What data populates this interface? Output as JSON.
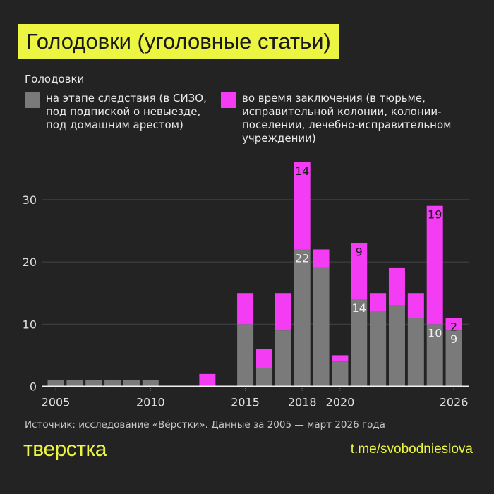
{
  "title": "Голодовки (уголовные статьи)",
  "colors": {
    "gray": "#7a7a7a",
    "magenta": "#f43cf4",
    "accent": "#ecf542",
    "background": "#232323"
  },
  "chart_data": {
    "type": "bar",
    "stacked": true,
    "legend_title": "Голодовки",
    "x": [
      2005,
      2006,
      2007,
      2008,
      2009,
      2010,
      2011,
      2012,
      2013,
      2014,
      2015,
      2016,
      2017,
      2018,
      2019,
      2020,
      2021,
      2022,
      2023,
      2024,
      2025,
      2026
    ],
    "x_tick_labels": [
      "2005",
      "2010",
      "2015",
      "2018",
      "2020",
      "2026"
    ],
    "series": [
      {
        "name": "на этапе следствия (в СИЗО, под подпиской о невыезде, под домашним арестом)",
        "color": "#7a7a7a",
        "values": [
          1,
          1,
          1,
          1,
          1,
          1,
          0,
          0,
          0,
          0,
          10,
          3,
          9,
          22,
          19,
          4,
          14,
          12,
          13,
          11,
          10,
          9
        ]
      },
      {
        "name": "во время заключения (в тюрьме, исправительной колонии, колонии-поселении, лечебно-исправительном учреждении)",
        "color": "#f43cf4",
        "values": [
          0,
          0,
          0,
          0,
          0,
          0,
          0,
          0,
          2,
          0,
          5,
          3,
          6,
          14,
          3,
          1,
          9,
          3,
          6,
          4,
          19,
          2
        ]
      }
    ],
    "data_labels": [
      {
        "x": 2018,
        "series": 0,
        "text": "22"
      },
      {
        "x": 2018,
        "series": 1,
        "text": "14"
      },
      {
        "x": 2021,
        "series": 0,
        "text": "14"
      },
      {
        "x": 2021,
        "series": 1,
        "text": "9"
      },
      {
        "x": 2025,
        "series": 0,
        "text": "10"
      },
      {
        "x": 2025,
        "series": 1,
        "text": "19"
      },
      {
        "x": 2026,
        "series": 0,
        "text": "9"
      },
      {
        "x": 2026,
        "series": 1,
        "text": "2"
      }
    ],
    "y_ticks": [
      "0",
      "10",
      "20",
      "30"
    ],
    "ylim": [
      0,
      36
    ],
    "grid": true,
    "legend_placement": "top"
  },
  "legend": {
    "gray_lines": [
      "на этапе следствия (в СИЗО,",
      "под подпиской о невыезде,",
      "под домашним арестом)"
    ],
    "magenta_lines": [
      "во время заключения (в тюрьме,",
      "исправительной колонии, колонии-",
      "поселении, лечебно-исправительном",
      "учреждении)"
    ]
  },
  "source": "Источник: исследование «Вёрстки». Данные за 2005 — март 2026 года",
  "logo": "тверстка",
  "link": "t.me/svobodnieslova"
}
